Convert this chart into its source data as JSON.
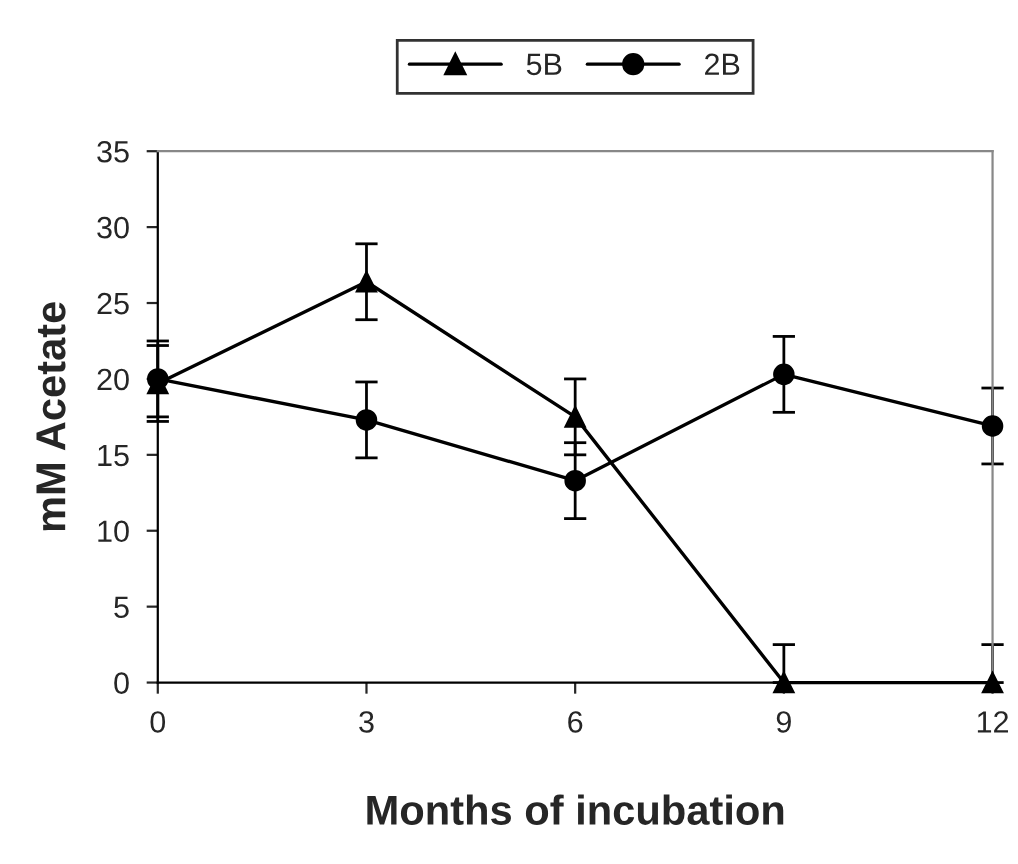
{
  "chart_data": {
    "type": "line",
    "xlabel": "Months of incubation",
    "ylabel": "mM Acetate",
    "x": [
      0,
      3,
      6,
      9,
      12
    ],
    "series": [
      {
        "name": "5B",
        "color": "#000000",
        "marker": "triangle",
        "values": [
          19.7,
          26.4,
          17.5,
          0,
          0
        ],
        "errors": [
          2.5,
          2.5,
          2.5,
          [
            0,
            2.5
          ],
          [
            0,
            2.5
          ]
        ]
      },
      {
        "name": "2B",
        "color": "#000000",
        "marker": "circle",
        "values": [
          20.0,
          17.3,
          13.3,
          20.3,
          16.9
        ],
        "errors": [
          2.5,
          2.5,
          2.5,
          2.5,
          2.5
        ]
      }
    ],
    "xlim": [
      0,
      12
    ],
    "xticks": [
      0,
      3,
      6,
      9,
      12
    ],
    "ylim": [
      0,
      35
    ],
    "yticks": [
      0,
      5,
      10,
      15,
      20,
      25,
      30,
      35
    ],
    "grid": false,
    "legend": "top",
    "line_style": "solid"
  }
}
